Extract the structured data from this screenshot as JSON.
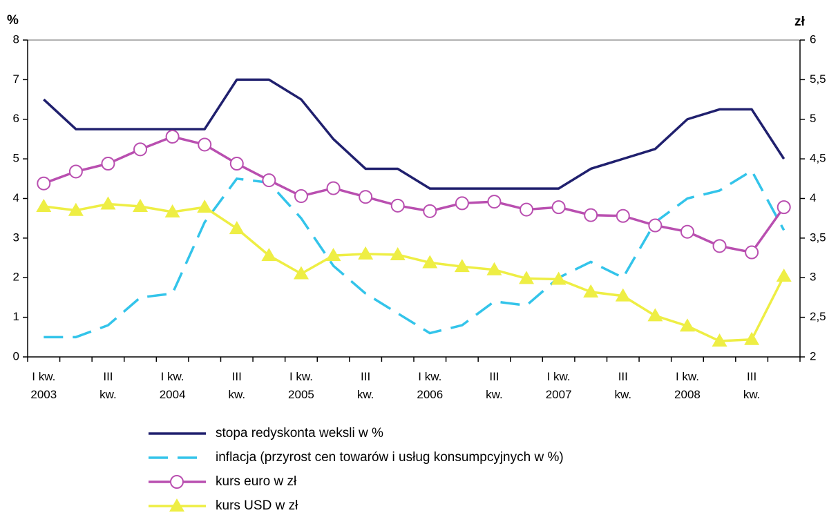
{
  "chart_data": {
    "type": "line",
    "y_label": "%",
    "y2_label": "zł",
    "categories": [
      "I kw.\n2003",
      null,
      "III\nkw.",
      null,
      "I kw.\n2004",
      null,
      "III\nkw.",
      null,
      "I kw.\n2005",
      null,
      "III\nkw.",
      null,
      "I kw.\n2006",
      null,
      "III\nkw.",
      null,
      "I kw.\n2007",
      null,
      "III\nkw.",
      null,
      "I kw.\n2008",
      null,
      "III\nkw.",
      null
    ],
    "ylim": [
      0,
      8
    ],
    "yticks": [
      0,
      1,
      2,
      3,
      4,
      5,
      6,
      7,
      8
    ],
    "y2lim": [
      2,
      6
    ],
    "y2ticks": [
      2,
      {
        "value": 2.5,
        "label": "2,5"
      },
      3,
      {
        "value": 3.5,
        "label": "3,5"
      },
      4,
      {
        "value": 4.5,
        "label": "4,5"
      },
      5,
      {
        "value": 5.5,
        "label": "5,5"
      },
      6
    ],
    "grid": false,
    "legend": "bottom",
    "series": [
      {
        "name": "stopa redyskonta weksli w %",
        "color": "#20206e",
        "style": "solid",
        "marker": "none",
        "values": [
          6.5,
          5.75,
          5.75,
          5.75,
          5.75,
          5.75,
          7.0,
          7.0,
          6.5,
          5.5,
          4.75,
          4.75,
          4.25,
          4.25,
          4.25,
          4.25,
          4.25,
          4.75,
          5.0,
          5.25,
          6.0,
          6.25,
          6.25,
          5.0
        ]
      },
      {
        "name": "inflacja (przyrost cen towarów i usług konsumpcyjnych w %)",
        "color": "#33c4ea",
        "style": "dashed",
        "marker": "none",
        "values": [
          0.5,
          0.5,
          0.8,
          1.5,
          1.6,
          3.4,
          4.5,
          4.4,
          3.5,
          2.3,
          1.6,
          1.1,
          0.6,
          0.8,
          1.4,
          1.3,
          2.0,
          2.4,
          2.0,
          3.4,
          4.0,
          4.2,
          4.7,
          3.2
        ]
      },
      {
        "name": "kurs euro w zł",
        "color": "#b94fb0",
        "style": "solid",
        "marker": "circle",
        "axis": "y2",
        "values": [
          4.19,
          4.34,
          4.44,
          4.62,
          4.78,
          4.68,
          4.44,
          4.23,
          4.03,
          4.13,
          4.02,
          3.91,
          3.84,
          3.94,
          3.96,
          3.86,
          3.89,
          3.79,
          3.78,
          3.66,
          3.58,
          3.4,
          3.32,
          3.89
        ]
      },
      {
        "name": "kurs USD w zł",
        "color": "#eeee44",
        "style": "solid",
        "marker": "triangle",
        "axis": "y2",
        "values": [
          3.9,
          3.85,
          3.93,
          3.9,
          3.83,
          3.89,
          3.62,
          3.28,
          3.05,
          3.28,
          3.3,
          3.29,
          3.19,
          3.14,
          3.1,
          2.99,
          2.98,
          2.82,
          2.77,
          2.52,
          2.39,
          2.2,
          2.22,
          3.02
        ]
      }
    ]
  }
}
